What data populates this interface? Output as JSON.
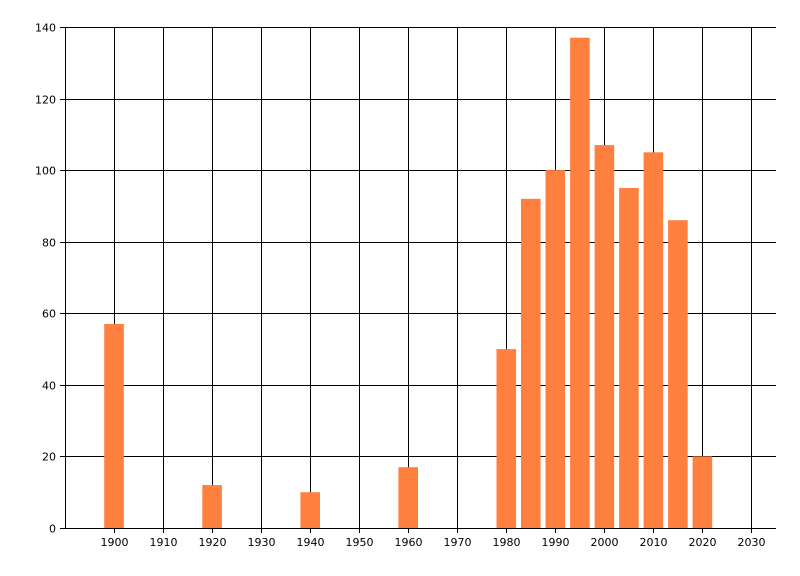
{
  "chart_data": {
    "type": "bar",
    "title": "",
    "xlabel": "",
    "ylabel": "",
    "x": [
      1900,
      1920,
      1940,
      1960,
      1980,
      1985,
      1990,
      1995,
      2000,
      2005,
      2010,
      2015,
      2020
    ],
    "values": [
      57,
      12,
      10,
      17,
      50,
      92,
      100,
      137,
      107,
      95,
      105,
      86,
      20
    ],
    "xlim": [
      1890,
      2035
    ],
    "ylim": [
      0,
      140
    ],
    "xticks": [
      1900,
      1910,
      1920,
      1930,
      1940,
      1950,
      1960,
      1970,
      1980,
      1990,
      2000,
      2010,
      2020,
      2030
    ],
    "yticks": [
      0,
      20,
      40,
      60,
      80,
      100,
      120,
      140
    ],
    "grid": true,
    "bar_color": "#ff7f3f",
    "grid_color": "#000000"
  }
}
